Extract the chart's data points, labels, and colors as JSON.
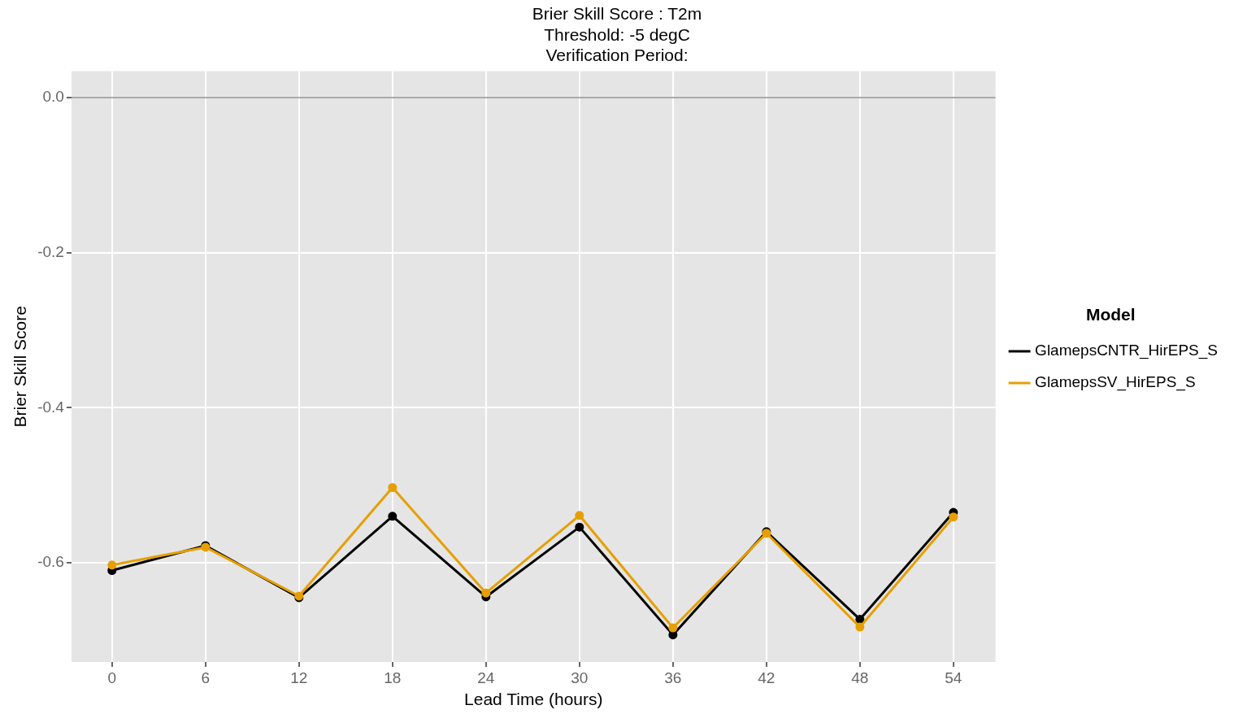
{
  "chart_data": {
    "type": "line",
    "title": "Brier Skill Score : T2m\nThreshold: -5 degC\nVerification Period:",
    "xlabel": "Lead Time (hours)",
    "ylabel": "Brier Skill Score",
    "legend_title": "Model",
    "x": [
      0,
      6,
      12,
      18,
      24,
      30,
      36,
      42,
      48,
      54
    ],
    "series": [
      {
        "name": "GlamepsCNTR_HirEPS_S",
        "color": "#000000",
        "values": [
          -0.61,
          -0.578,
          -0.645,
          -0.54,
          -0.644,
          -0.554,
          -0.693,
          -0.56,
          -0.673,
          -0.535
        ]
      },
      {
        "name": "GlamepsSV_HirEPS_S",
        "color": "#e69f00",
        "values": [
          -0.603,
          -0.58,
          -0.643,
          -0.503,
          -0.639,
          -0.539,
          -0.684,
          -0.562,
          -0.683,
          -0.541
        ]
      }
    ],
    "xlim": [
      -2.6,
      56.7
    ],
    "xticks": [
      0,
      6,
      12,
      18,
      24,
      30,
      36,
      42,
      48,
      54
    ],
    "ylim": [
      -0.728,
      0.034
    ],
    "yticks": [
      {
        "value": 0,
        "label": "0.0"
      },
      -0.2,
      -0.4,
      -0.6
    ],
    "ref_lines": [
      {
        "axis": "y",
        "value": 0,
        "color": "#aaaaaa"
      }
    ],
    "grid": true,
    "legend": "right",
    "marker": "circle",
    "line_style": "solid"
  }
}
